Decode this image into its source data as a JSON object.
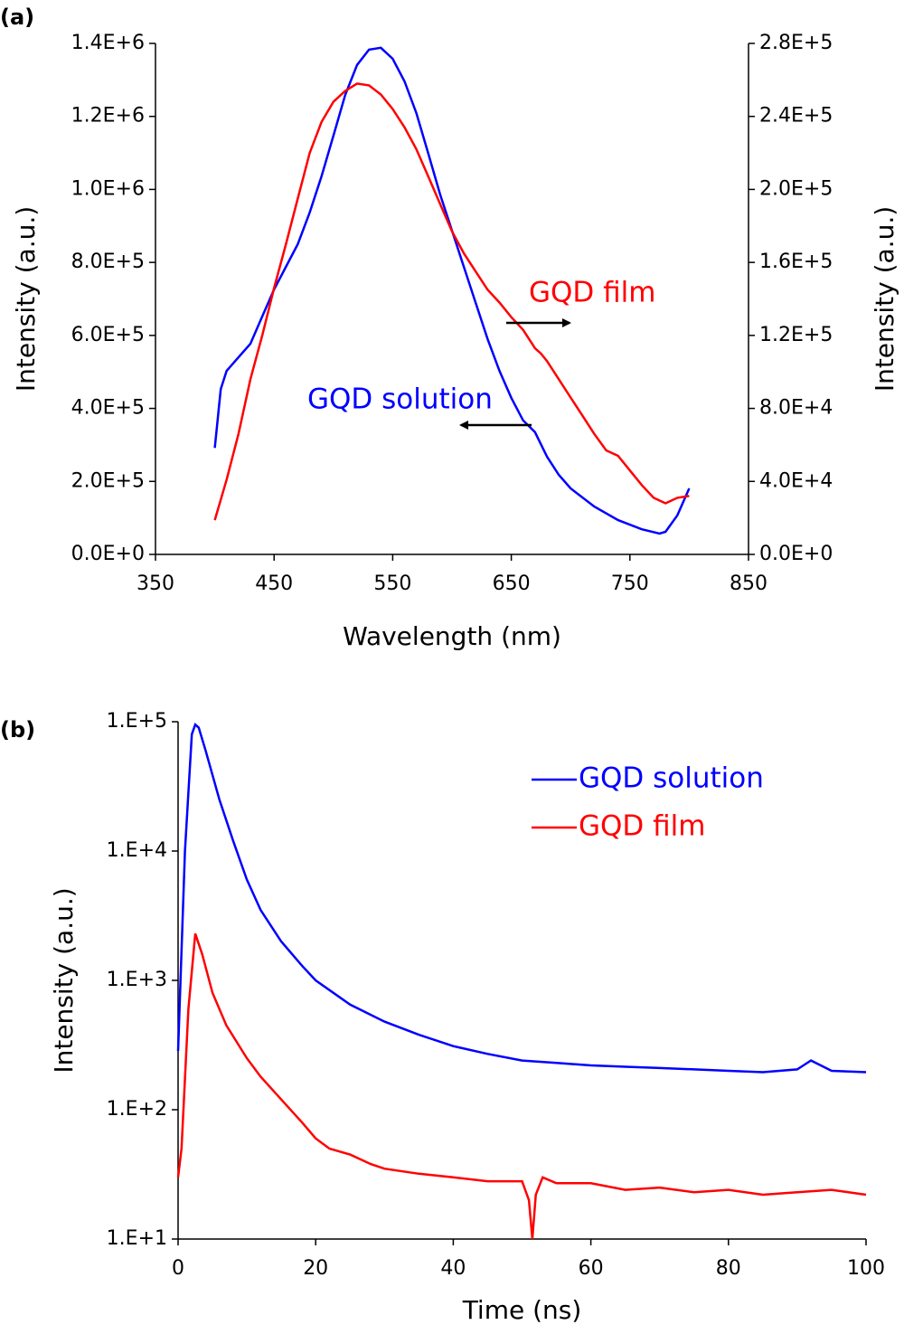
{
  "chart_data": [
    {
      "type": "line",
      "panel_label": "(a)",
      "x_label": "Wavelength (nm)",
      "y_label": "Intensity (a.u.)",
      "y2_label": "Intensity (a.u.)",
      "annotations": [
        "GQD film",
        "GQD solution"
      ],
      "xlim": [
        350,
        850
      ],
      "xticks": [
        350,
        450,
        550,
        650,
        750,
        850
      ],
      "ylim": [
        0,
        1400000
      ],
      "yticks": [
        {
          "value": 0,
          "label": "0.0E+0"
        },
        {
          "value": 200000,
          "label": "2.0E+5"
        },
        {
          "value": 400000,
          "label": "4.0E+5"
        },
        {
          "value": 600000,
          "label": "6.0E+5"
        },
        {
          "value": 800000,
          "label": "8.0E+5"
        },
        {
          "value": 1000000,
          "label": "1.0E+6"
        },
        {
          "value": 1200000,
          "label": "1.2E+6"
        },
        {
          "value": 1400000,
          "label": "1.4E+6"
        }
      ],
      "y2lim": [
        0,
        280000
      ],
      "y2ticks": [
        {
          "value": 0,
          "label": "0.0E+0"
        },
        {
          "value": 40000,
          "label": "4.0E+4"
        },
        {
          "value": 80000,
          "label": "8.0E+4"
        },
        {
          "value": 120000,
          "label": "1.2E+5"
        },
        {
          "value": 160000,
          "label": "1.6E+5"
        },
        {
          "value": 200000,
          "label": "2.0E+5"
        },
        {
          "value": 240000,
          "label": "2.4E+5"
        },
        {
          "value": 280000,
          "label": "2.8E+5"
        }
      ],
      "grid": false,
      "series": [
        {
          "name": "GQD solution",
          "color": "#0000ff",
          "axis": "y",
          "x": [
            400,
            405,
            410,
            420,
            430,
            440,
            450,
            460,
            470,
            480,
            490,
            500,
            510,
            520,
            530,
            540,
            550,
            560,
            570,
            580,
            590,
            600,
            610,
            620,
            630,
            640,
            650,
            660,
            670,
            680,
            690,
            700,
            720,
            740,
            760,
            775,
            780,
            790,
            800
          ],
          "values": [
            292000,
            453000,
            503000,
            540000,
            577000,
            652000,
            726000,
            788000,
            850000,
            937000,
            1036000,
            1147000,
            1259000,
            1341000,
            1383000,
            1388000,
            1358000,
            1296000,
            1209000,
            1098000,
            986000,
            887000,
            788000,
            689000,
            590000,
            503000,
            429000,
            367000,
            335000,
            268000,
            218000,
            181000,
            131000,
            94000,
            69000,
            57000,
            62000,
            107000,
            181000
          ]
        },
        {
          "name": "GQD film",
          "color": "#ff0000",
          "axis": "y2",
          "x": [
            400,
            410,
            420,
            430,
            440,
            450,
            460,
            470,
            480,
            490,
            500,
            510,
            520,
            530,
            540,
            550,
            560,
            570,
            580,
            590,
            600,
            610,
            620,
            630,
            640,
            650,
            660,
            670,
            675,
            680,
            690,
            700,
            710,
            720,
            730,
            740,
            750,
            760,
            770,
            780,
            790,
            800
          ],
          "values": [
            18800,
            41000,
            66000,
            96000,
            120000,
            146000,
            170000,
            195000,
            220000,
            237000,
            248000,
            254000,
            258000,
            257000,
            252000,
            244000,
            234000,
            222000,
            207000,
            192000,
            177000,
            165000,
            155000,
            145000,
            138000,
            130000,
            123000,
            113000,
            110000,
            106000,
            96000,
            86000,
            76000,
            66000,
            57000,
            54000,
            46000,
            38000,
            31000,
            28000,
            31000,
            32000
          ]
        }
      ]
    },
    {
      "type": "line",
      "panel_label": "(b)",
      "x_label": "Time (ns)",
      "y_label": "Intensity (a.u.)",
      "xlim": [
        0,
        100
      ],
      "xticks": [
        0,
        20,
        40,
        60,
        80,
        100
      ],
      "yscale": "log",
      "ylim": [
        10,
        100000
      ],
      "yticks": [
        {
          "value": 10,
          "label": "1.E+1"
        },
        {
          "value": 100,
          "label": "1.E+2"
        },
        {
          "value": 1000,
          "label": "1.E+3"
        },
        {
          "value": 10000,
          "label": "1.E+4"
        },
        {
          "value": 100000,
          "label": "1.E+5"
        }
      ],
      "grid": false,
      "legend": "upper right",
      "series": [
        {
          "name": "GQD solution",
          "color": "#0000ff",
          "x": [
            0,
            1,
            2,
            2.5,
            3,
            4,
            6,
            8,
            10,
            12,
            15,
            18,
            20,
            25,
            30,
            35,
            40,
            45,
            50,
            55,
            60,
            65,
            70,
            75,
            80,
            85,
            90,
            92,
            95,
            100
          ],
          "values": [
            285,
            10000,
            80000,
            95000,
            90000,
            60000,
            25000,
            12000,
            6000,
            3500,
            2000,
            1300,
            1000,
            650,
            480,
            380,
            310,
            270,
            240,
            230,
            220,
            215,
            210,
            205,
            200,
            195,
            205,
            240,
            200,
            195
          ]
        },
        {
          "name": "GQD film",
          "color": "#ff0000",
          "x": [
            0,
            0.5,
            1.5,
            2.5,
            3.5,
            5,
            7,
            10,
            12,
            15,
            18,
            20,
            22,
            25,
            28,
            30,
            35,
            40,
            45,
            50,
            51,
            51.5,
            52,
            53,
            55,
            60,
            65,
            70,
            75,
            80,
            85,
            90,
            95,
            100
          ],
          "values": [
            30,
            50,
            600,
            2300,
            1600,
            800,
            450,
            250,
            180,
            120,
            80,
            60,
            50,
            45,
            38,
            35,
            32,
            30,
            28,
            28,
            20,
            10,
            22,
            30,
            27,
            27,
            24,
            25,
            23,
            24,
            22,
            23,
            24,
            22
          ]
        }
      ]
    }
  ]
}
